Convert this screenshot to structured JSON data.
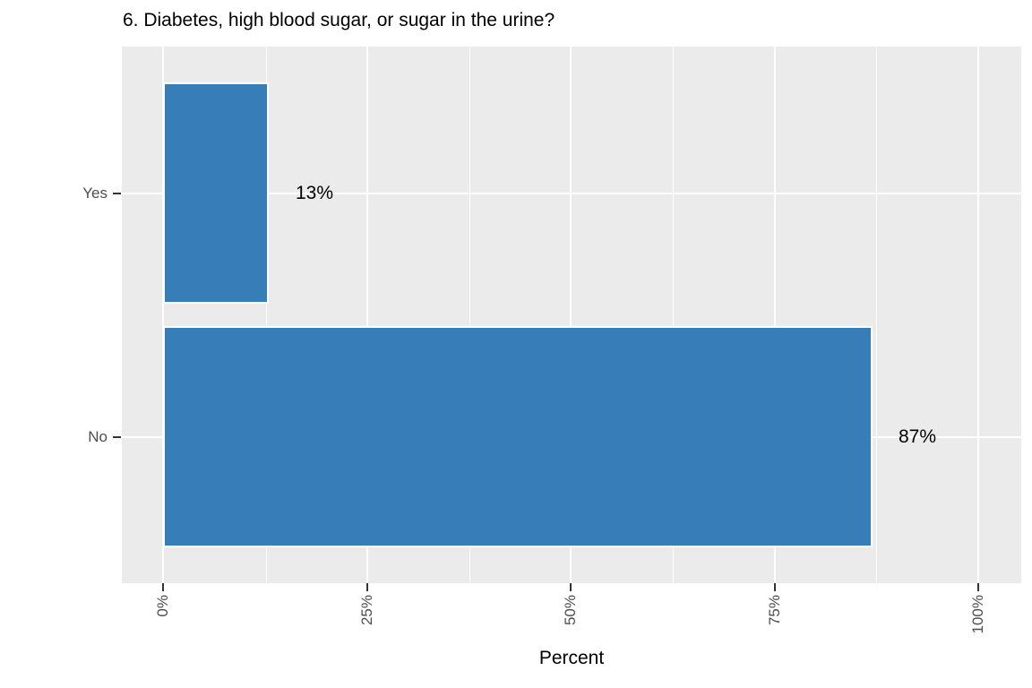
{
  "chart": {
    "title": "6. Diabetes, high blood sugar, or sugar in the urine?",
    "xlabel": "Percent"
  },
  "chart_data": {
    "type": "bar",
    "orientation": "horizontal",
    "title": "6. Diabetes, high blood sugar, or sugar in the urine?",
    "categories": [
      "Yes",
      "No"
    ],
    "values": [
      13,
      87
    ],
    "value_labels": [
      "13%",
      "87%"
    ],
    "xlabel": "Percent",
    "ylabel": "",
    "x_ticks": [
      "0%",
      "25%",
      "50%",
      "75%",
      "100%"
    ],
    "x_tick_values": [
      0,
      25,
      50,
      75,
      100
    ],
    "xlim": [
      0,
      100
    ],
    "x_minor_gridlines": [
      12.5,
      37.5,
      62.5,
      87.5
    ],
    "grid": true,
    "legend": false,
    "x_tick_label_angle_deg": 90,
    "colors": {
      "bar_fill": "#377EB8",
      "bar_stroke": "#FFFFFF",
      "panel_background": "#EBEBEB",
      "gridline": "#FFFFFF",
      "axis_text": "#4D4D4D",
      "title_text": "#000000",
      "tick_mark": "#333333"
    }
  }
}
